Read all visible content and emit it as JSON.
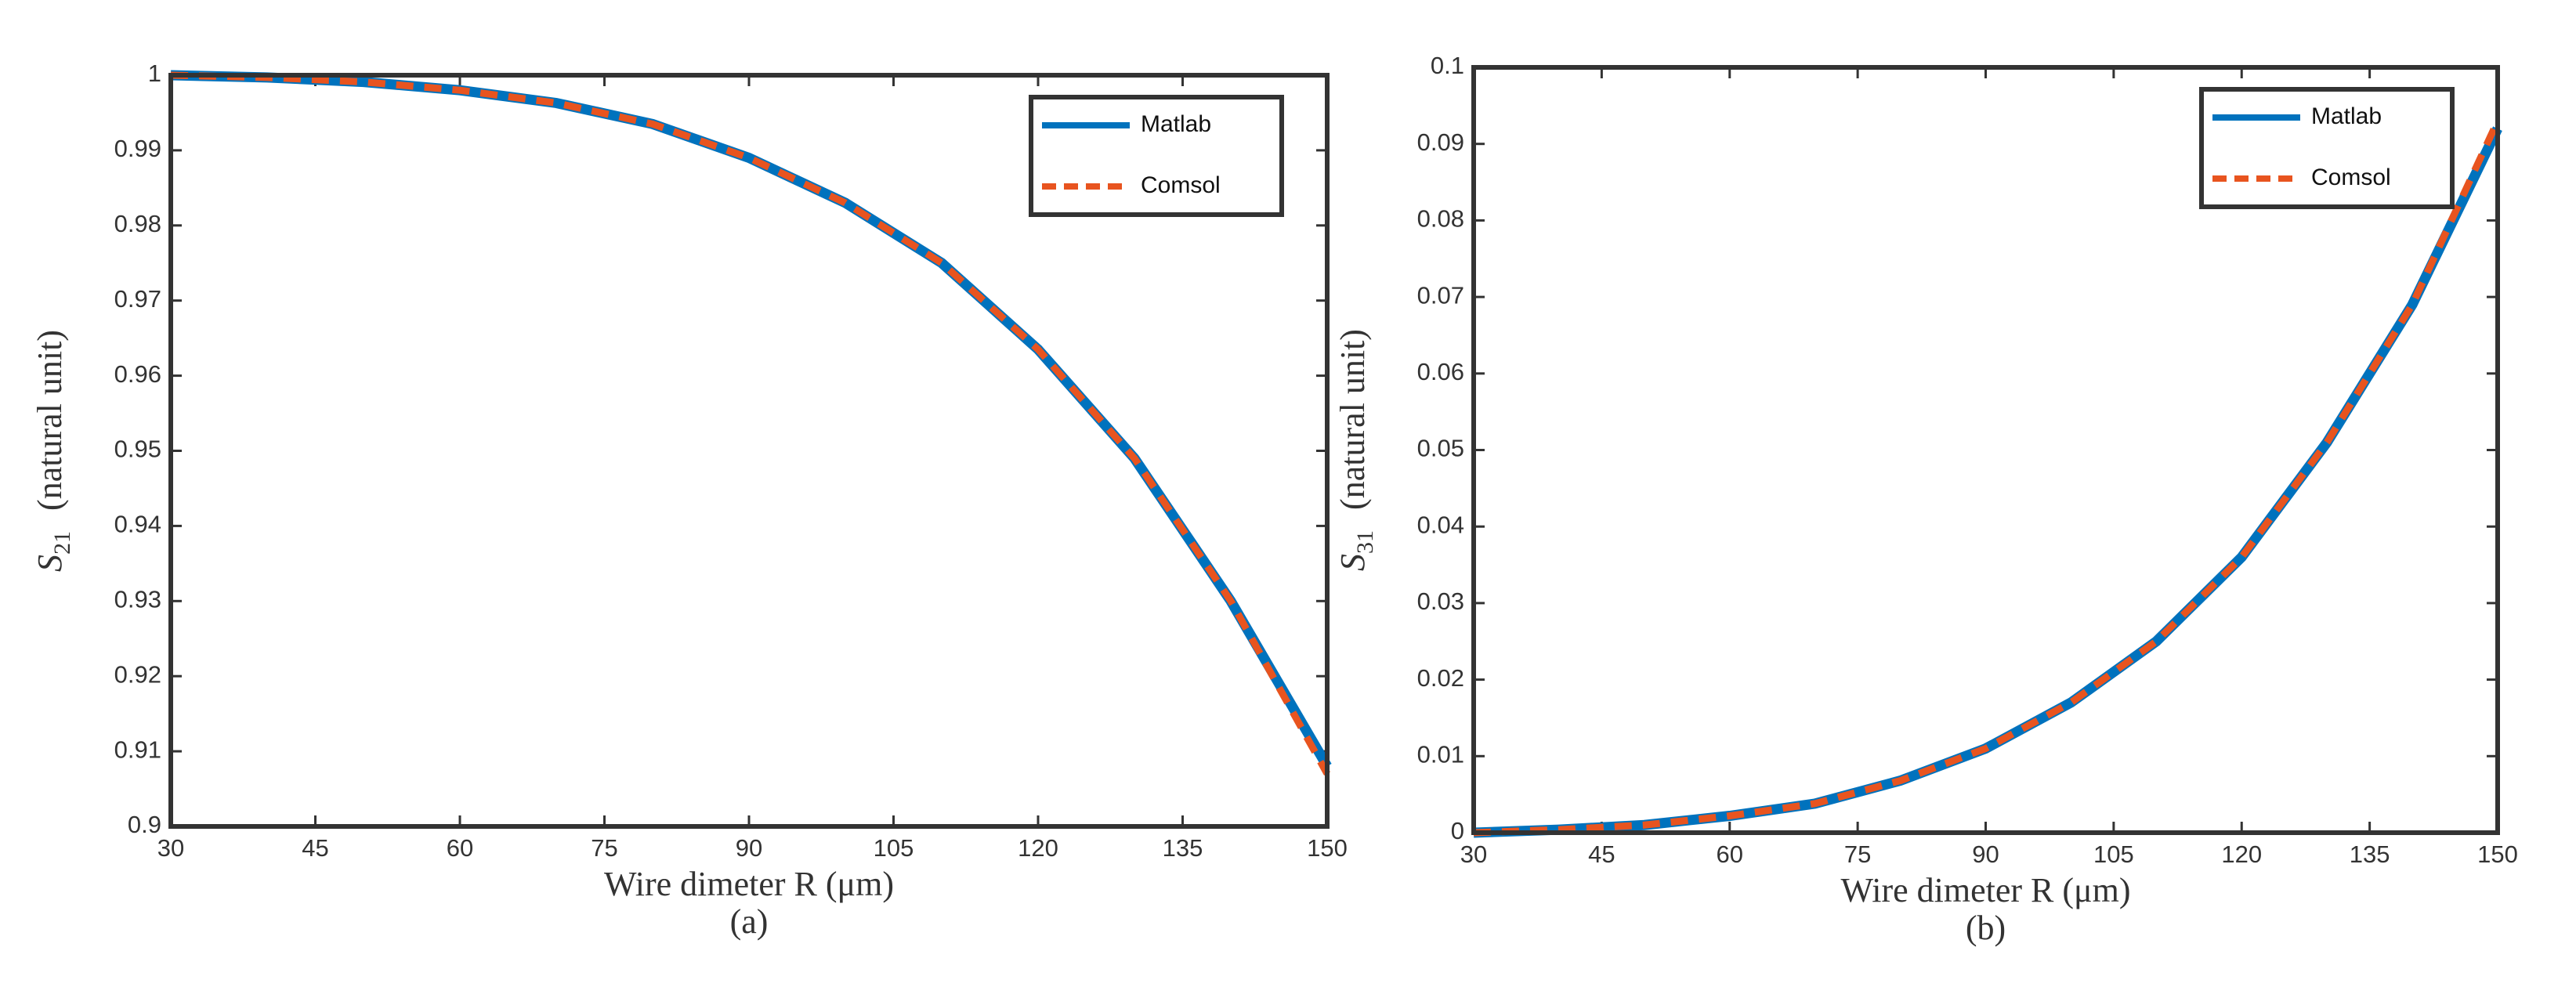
{
  "chart_data": [
    {
      "type": "line",
      "caption": "(a)",
      "x_label": "Wire dimeter R (μm)",
      "y_label_symbol": "S",
      "y_label_subscript": "21",
      "y_label_unit": "(natural unit)",
      "x": [
        30,
        40,
        50,
        60,
        70,
        80,
        90,
        100,
        110,
        120,
        130,
        140,
        150
      ],
      "series": [
        {
          "name": "Matlab",
          "color": "#0072bd",
          "linestyle": "solid",
          "values": [
            1.0,
            0.9997,
            0.9991,
            0.998,
            0.9963,
            0.9935,
            0.989,
            0.983,
            0.975,
            0.9635,
            0.949,
            0.93,
            0.908
          ]
        },
        {
          "name": "Comsol",
          "color": "#e8541f",
          "linestyle": "dashed",
          "values": [
            1.0,
            0.9997,
            0.9991,
            0.998,
            0.9963,
            0.9935,
            0.989,
            0.983,
            0.975,
            0.9635,
            0.949,
            0.93,
            0.907
          ]
        }
      ],
      "xlim": [
        30,
        150
      ],
      "xticks": [
        30,
        45,
        60,
        75,
        90,
        105,
        120,
        135,
        150
      ],
      "ylim": [
        0.9,
        1
      ],
      "yticks": [
        0.9,
        0.91,
        0.92,
        0.93,
        0.94,
        0.95,
        0.96,
        0.97,
        0.98,
        0.99,
        1
      ],
      "grid": false,
      "legend": "upper right"
    },
    {
      "type": "line",
      "caption": "(b)",
      "x_label": "Wire dimeter R (μm)",
      "y_label_symbol": "S",
      "y_label_subscript": "31",
      "y_label_unit": "(natural unit)",
      "x": [
        30,
        40,
        50,
        60,
        70,
        80,
        90,
        100,
        110,
        120,
        130,
        140,
        150
      ],
      "series": [
        {
          "name": "Matlab",
          "color": "#0072bd",
          "linestyle": "solid",
          "values": [
            0,
            0.0004,
            0.001,
            0.0022,
            0.0038,
            0.0068,
            0.011,
            0.017,
            0.025,
            0.036,
            0.051,
            0.069,
            0.092
          ]
        },
        {
          "name": "Comsol",
          "color": "#e8541f",
          "linestyle": "dashed",
          "values": [
            0,
            0.0004,
            0.001,
            0.0022,
            0.0038,
            0.0068,
            0.011,
            0.017,
            0.025,
            0.036,
            0.051,
            0.069,
            0.093
          ]
        }
      ],
      "xlim": [
        30,
        150
      ],
      "xticks": [
        30,
        45,
        60,
        75,
        90,
        105,
        120,
        135,
        150
      ],
      "ylim": [
        0,
        0.1
      ],
      "yticks": [
        0,
        0.01,
        0.02,
        0.03,
        0.04,
        0.05,
        0.06,
        0.07,
        0.08,
        0.09,
        0.1
      ],
      "grid": false,
      "legend": "upper right"
    }
  ]
}
